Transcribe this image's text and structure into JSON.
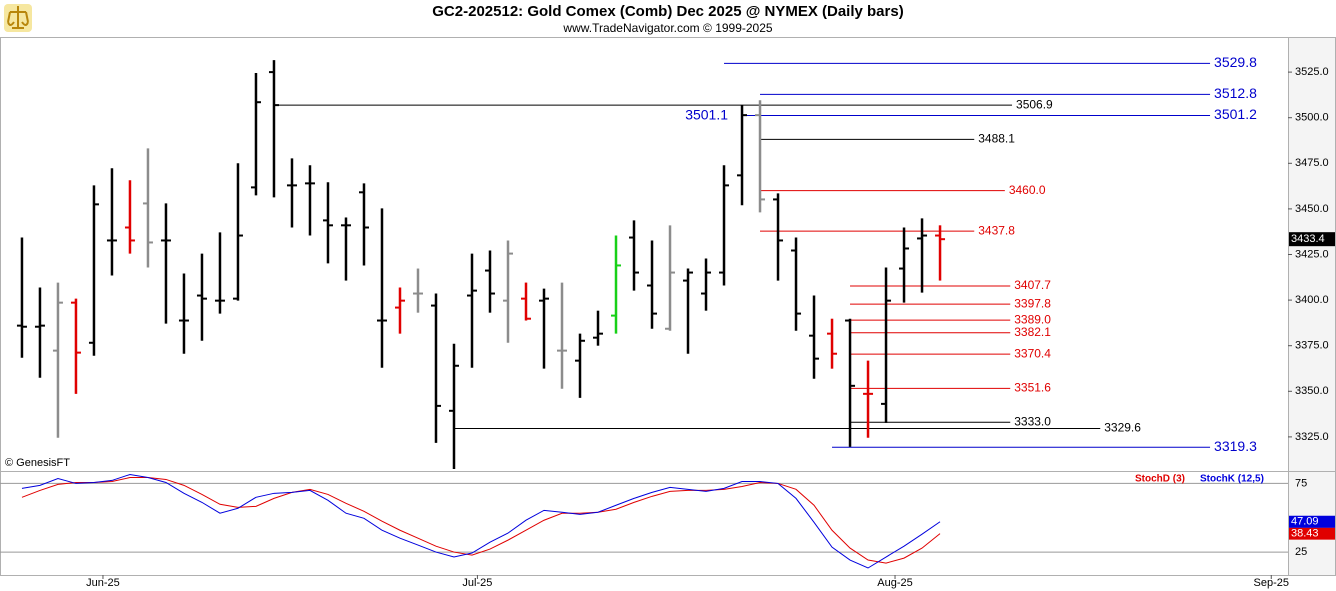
{
  "chart_data": [
    {
      "type": "ohlc",
      "title": "GC2-202512:  Gold Comex (Comb) Dec 2025 @ NYMEX  (Daily bars)",
      "subtitle": "www.TradeNavigator.com © 1999-2025",
      "watermark": "© GenesisFT",
      "x": [
        0,
        1,
        2,
        3,
        4,
        5,
        6,
        7,
        8,
        9,
        10,
        11,
        12,
        13,
        14,
        15,
        16,
        17,
        18,
        19,
        20,
        21,
        22,
        23,
        24,
        25,
        26,
        27,
        28,
        29,
        30,
        31,
        32,
        33,
        34,
        35,
        36,
        37,
        38,
        39,
        40,
        41,
        42,
        43,
        44,
        45,
        46,
        47,
        48,
        49,
        50,
        51
      ],
      "open": [
        3386,
        3385.4,
        3372.3,
        3398.6,
        3376.6,
        3432.7,
        3439.8,
        3453,
        3432.7,
        3388.8,
        3402.5,
        3399.7,
        3400.8,
        3461.8,
        3525,
        3462.9,
        3464,
        3443.7,
        3441,
        3459.1,
        3388.8,
        3395.9,
        3403.6,
        3397,
        3339.3,
        3402.5,
        3416.2,
        3399.7,
        3400.8,
        3399.7,
        3372.3,
        3366.8,
        3379.4,
        3391.5,
        3434.3,
        3408,
        3384.3,
        3410.7,
        3403.6,
        3415.1,
        3468.4,
        3501.4,
        3455.2,
        3427.2,
        3380.5,
        3381.6,
        3388.8,
        3348.6,
        3343.1,
        3417.3,
        3433.8,
        3435.4
      ],
      "high": [
        3434.3,
        3406.9,
        3409.6,
        3400.8,
        3462.9,
        3472.3,
        3465.7,
        3483.2,
        3453,
        3414.6,
        3425.5,
        3437.1,
        3475,
        3524.5,
        3531.6,
        3477.7,
        3473.9,
        3464.6,
        3445.3,
        3464,
        3450.3,
        3406.9,
        3417.3,
        3403.6,
        3376.1,
        3425.5,
        3427.2,
        3432.7,
        3409.6,
        3406.3,
        3409.6,
        3381.6,
        3394.2,
        3435.4,
        3443.7,
        3432.7,
        3441,
        3417.3,
        3422.8,
        3473.9,
        3506.9,
        3509.6,
        3458.5,
        3434.3,
        3402.5,
        3389.8,
        3389.8,
        3366.8,
        3417.9,
        3439.8,
        3444.8,
        3441
      ],
      "low": [
        3368.4,
        3357.4,
        3324.5,
        3348.6,
        3369.5,
        3413.5,
        3425.5,
        3417.9,
        3387.1,
        3370.6,
        3377.7,
        3392.6,
        3399.7,
        3457.4,
        3456.3,
        3439.8,
        3435.4,
        3420.1,
        3410.7,
        3419,
        3362.9,
        3381.6,
        3393.1,
        3321.7,
        3307.4,
        3362.9,
        3393.1,
        3376.6,
        3388.8,
        3362.4,
        3351.4,
        3346.4,
        3375,
        3381.6,
        3405.2,
        3384.3,
        3383.2,
        3370.6,
        3394.2,
        3408,
        3452,
        3448.1,
        3410.7,
        3383.2,
        3356.9,
        3362.4,
        3319.5,
        3324.5,
        3332.7,
        3398.6,
        3404.1,
        3410.7
      ],
      "close": [
        3385.4,
        3386,
        3398.6,
        3371.2,
        3452.5,
        3432.7,
        3432.7,
        3431.6,
        3432.7,
        3388.8,
        3400.8,
        3399.7,
        3435.4,
        3508.5,
        3506.9,
        3462.9,
        3464,
        3441,
        3441,
        3439.8,
        3388.8,
        3399.7,
        3403.6,
        3342,
        3364,
        3405.2,
        3403.6,
        3425.5,
        3389.8,
        3400.8,
        3372.3,
        3377.7,
        3381.6,
        3419,
        3415.1,
        3392.6,
        3415.1,
        3415.1,
        3415.1,
        3462.9,
        3501.4,
        3455.2,
        3432.7,
        3392.6,
        3367.9,
        3370.6,
        3353,
        3348.6,
        3399.7,
        3428.3,
        3435.4,
        3433.4
      ],
      "bar_colors": [
        "#000000",
        "#000000",
        "#8c8c8c",
        "#e00000",
        "#000000",
        "#000000",
        "#e00000",
        "#8c8c8c",
        "#000000",
        "#000000",
        "#000000",
        "#000000",
        "#000000",
        "#000000",
        "#000000",
        "#000000",
        "#000000",
        "#000000",
        "#000000",
        "#000000",
        "#000000",
        "#e00000",
        "#8c8c8c",
        "#000000",
        "#000000",
        "#000000",
        "#000000",
        "#8c8c8c",
        "#e00000",
        "#000000",
        "#8c8c8c",
        "#000000",
        "#000000",
        "#18d018",
        "#000000",
        "#000000",
        "#8c8c8c",
        "#000000",
        "#000000",
        "#000000",
        "#000000",
        "#8c8c8c",
        "#000000",
        "#000000",
        "#000000",
        "#e00000",
        "#000000",
        "#e00000",
        "#000000",
        "#000000",
        "#000000",
        "#e00000"
      ],
      "levels": [
        {
          "value": 3529.8,
          "label": "3529.8",
          "color": "#0000cc",
          "from": 39,
          "to": 66
        },
        {
          "value": 3512.8,
          "label": "3512.8",
          "color": "#0000cc",
          "from": 41,
          "to": 66
        },
        {
          "value": 3506.9,
          "label": "3506.9",
          "color": "#000000",
          "from": 14,
          "to": 55
        },
        {
          "value": 3501.2,
          "label": "3501.2",
          "color": "#0000cc",
          "from": 40,
          "to": 66
        },
        {
          "value": 3488.1,
          "label": "3488.1",
          "color": "#000000",
          "from": 41,
          "to": 52.9
        },
        {
          "value": 3460.0,
          "label": "3460.0",
          "color": "#e00000",
          "from": 41,
          "to": 54.6
        },
        {
          "value": 3437.8,
          "label": "3437.8",
          "color": "#e00000",
          "from": 41,
          "to": 52.9
        },
        {
          "value": 3407.7,
          "label": "3407.7",
          "color": "#e00000",
          "from": 46,
          "to": 54.9
        },
        {
          "value": 3397.8,
          "label": "3397.8",
          "color": "#e00000",
          "from": 46,
          "to": 54.9
        },
        {
          "value": 3389.0,
          "label": "3389.0",
          "color": "#e00000",
          "from": 46,
          "to": 54.9
        },
        {
          "value": 3382.1,
          "label": "3382.1",
          "color": "#e00000",
          "from": 46,
          "to": 54.9
        },
        {
          "value": 3370.4,
          "label": "3370.4",
          "color": "#e00000",
          "from": 46,
          "to": 54.9
        },
        {
          "value": 3351.6,
          "label": "3351.6",
          "color": "#e00000",
          "from": 46,
          "to": 54.9
        },
        {
          "value": 3333.0,
          "label": "3333.0",
          "color": "#000000",
          "from": 46,
          "to": 54.9
        },
        {
          "value": 3329.6,
          "label": "3329.6",
          "color": "#000000",
          "from": 24,
          "to": 59.9
        },
        {
          "value": 3319.3,
          "label": "3319.3",
          "color": "#0000cc",
          "from": 45,
          "to": 66
        }
      ],
      "annotation": 3501.1,
      "xlim": [
        -1.22,
        70.33
      ],
      "ylim": [
        3306.3,
        3543.7
      ],
      "yticks": [
        {
          "value": 3325,
          "label": "3325.0"
        },
        {
          "value": 3350,
          "label": "3350.0"
        },
        {
          "value": 3375,
          "label": "3375.0"
        },
        {
          "value": 3400,
          "label": "3400.0"
        },
        {
          "value": 3425,
          "label": "3425.0"
        },
        {
          "value": 3450,
          "label": "3450.0"
        },
        {
          "value": 3475,
          "label": "3475.0"
        },
        {
          "value": 3500,
          "label": "3500.0"
        },
        {
          "value": 3525,
          "label": "3525.0"
        }
      ]
    },
    {
      "type": "line",
      "x": [
        0,
        1,
        2,
        3,
        4,
        5,
        6,
        7,
        8,
        9,
        10,
        11,
        12,
        13,
        14,
        15,
        16,
        17,
        18,
        19,
        20,
        21,
        22,
        23,
        24,
        25,
        26,
        27,
        28,
        29,
        30,
        31,
        32,
        33,
        34,
        35,
        36,
        37,
        38,
        39,
        40,
        41,
        42,
        43,
        44,
        45,
        46,
        47,
        48,
        49,
        50,
        51
      ],
      "series": [
        {
          "name": "StochD (3)",
          "color": "#e00000",
          "values": [
            64.9,
            69.9,
            74.3,
            75.7,
            75.7,
            76.4,
            79.3,
            79.3,
            77.9,
            73.6,
            67,
            59.8,
            57.6,
            58.3,
            64.1,
            68.5,
            70.7,
            67,
            60.5,
            54.7,
            47.5,
            40.9,
            35.1,
            29.3,
            25,
            22.8,
            27.2,
            33.7,
            40.9,
            48.2,
            53.3,
            53.3,
            54,
            56.2,
            61.2,
            65.6,
            69.2,
            69.9,
            69.9,
            70.7,
            72.8,
            75.7,
            75,
            70.7,
            59.1,
            40.9,
            27.9,
            19.2,
            17,
            20.6,
            27.9,
            38.43
          ]
        },
        {
          "name": "StochK (12,5)",
          "color": "#0000dd",
          "values": [
            71.4,
            73.6,
            78.6,
            75,
            75.7,
            77.2,
            81.5,
            79.3,
            75.7,
            67.8,
            61.2,
            53.3,
            56.9,
            64.9,
            67.8,
            68.5,
            69.9,
            62.7,
            53.3,
            49.6,
            40.9,
            35.1,
            30.1,
            25,
            21.4,
            24.3,
            32.2,
            38.8,
            48.2,
            55.4,
            54,
            52.5,
            54,
            59.1,
            64.1,
            68.5,
            72.1,
            70.7,
            69.2,
            71.4,
            76.4,
            76.4,
            75,
            64.1,
            46.7,
            28.6,
            19.2,
            13.4,
            21.4,
            29.3,
            38,
            47.09
          ]
        }
      ],
      "xlim": [
        -1.22,
        70.33
      ],
      "xticks": [
        {
          "value": 4.5,
          "label": "Jun-25"
        },
        {
          "value": 25.3,
          "label": "Jul-25"
        },
        {
          "value": 48.5,
          "label": "Aug-25"
        },
        {
          "value": 69.4,
          "label": "Sep-25"
        }
      ],
      "ylim": [
        8.3,
        82.6
      ],
      "yticks": [
        25,
        75
      ],
      "grid": true
    }
  ]
}
